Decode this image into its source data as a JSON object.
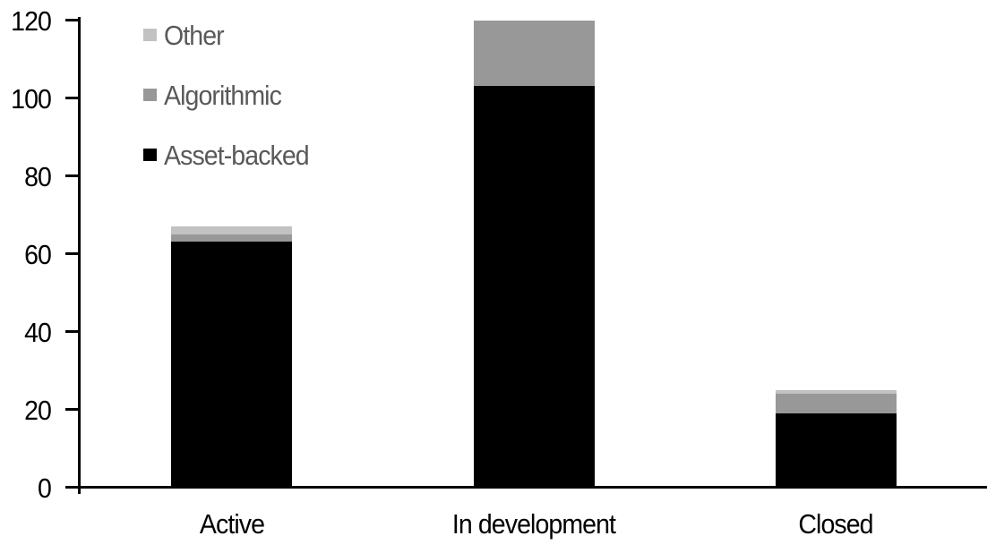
{
  "chart_data": {
    "type": "bar",
    "stacked": true,
    "title": "",
    "xlabel": "",
    "ylabel": "",
    "categories": [
      "Active",
      "In development",
      "Closed"
    ],
    "series": [
      {
        "name": "Asset-backed",
        "color": "#000000",
        "values": [
          63,
          103,
          19
        ]
      },
      {
        "name": "Algorithmic",
        "color": "#989898",
        "values": [
          2,
          17,
          5
        ]
      },
      {
        "name": "Other",
        "color": "#c2c2c2",
        "values": [
          2,
          0,
          1
        ]
      }
    ],
    "stack_totals": [
      67,
      120,
      25
    ],
    "ylim": [
      0,
      120
    ],
    "yticks": [
      0,
      20,
      40,
      60,
      80,
      100,
      120
    ],
    "grid": false,
    "legend": {
      "position": "top-left",
      "entries": [
        {
          "label": "Other",
          "color": "#c2c2c2"
        },
        {
          "label": "Algorithmic",
          "color": "#989898"
        },
        {
          "label": "Asset-backed",
          "color": "#000000"
        }
      ]
    },
    "colors": {
      "background": "#ffffff",
      "axis": "#000000",
      "tick_label_text": "#000000",
      "category_label_text": "#000000",
      "legend_text": "#595959"
    }
  }
}
